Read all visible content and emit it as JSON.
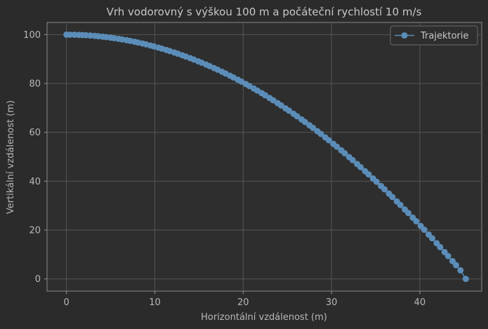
{
  "chart_data": {
    "type": "line",
    "title": "Vrh vodorovný s výškou 100 m a počáteční rychlostí 10 m/s",
    "xlabel": "Horizontální vzdálenost (m)",
    "ylabel": "Vertikální vzdálenost (m)",
    "xlim": [
      -2.2,
      47.0
    ],
    "ylim": [
      -5.0,
      105.0
    ],
    "xticks": [
      0,
      10,
      20,
      30,
      40
    ],
    "yticks": [
      0,
      20,
      40,
      60,
      80,
      100
    ],
    "grid": true,
    "legend_position": "top-right",
    "series": [
      {
        "name": "Trajektorie",
        "color": "#5b8db8",
        "marker": "circle",
        "x": [
          0.0,
          0.4,
          0.9,
          1.4,
          1.8,
          2.2,
          2.7,
          3.2,
          3.6,
          4.1,
          4.5,
          5.0,
          5.4,
          5.9,
          6.3,
          6.8,
          7.2,
          7.7,
          8.1,
          8.6,
          9.0,
          9.5,
          9.9,
          10.4,
          10.8,
          11.3,
          11.7,
          12.2,
          12.6,
          13.1,
          13.5,
          14.0,
          14.4,
          14.9,
          15.3,
          15.8,
          16.2,
          16.7,
          17.1,
          17.6,
          18.0,
          18.5,
          18.9,
          19.4,
          19.8,
          20.3,
          20.7,
          21.2,
          21.6,
          22.1,
          22.5,
          23.0,
          23.4,
          23.9,
          24.3,
          24.8,
          25.2,
          25.7,
          26.1,
          26.6,
          27.0,
          27.5,
          27.9,
          28.4,
          28.8,
          29.3,
          29.7,
          30.2,
          30.6,
          31.1,
          31.5,
          32.0,
          32.4,
          32.9,
          33.3,
          33.8,
          34.2,
          34.7,
          35.1,
          35.6,
          36.0,
          36.5,
          36.9,
          37.4,
          37.8,
          38.3,
          38.7,
          39.2,
          39.6,
          40.1,
          40.5,
          41.0,
          41.4,
          41.9,
          42.3,
          42.8,
          43.2,
          43.7,
          44.1,
          44.6,
          45.2
        ],
        "y": [
          100.0,
          99.99,
          99.96,
          99.9,
          99.84,
          99.76,
          99.64,
          99.5,
          99.36,
          99.18,
          99.0,
          98.78,
          98.57,
          98.29,
          98.05,
          97.73,
          97.46,
          97.09,
          96.78,
          96.37,
          96.03,
          95.57,
          95.19,
          94.7,
          94.28,
          93.74,
          93.29,
          92.7,
          92.21,
          91.58,
          91.06,
          90.39,
          89.83,
          89.11,
          88.52,
          87.76,
          87.13,
          86.32,
          85.66,
          84.81,
          84.1,
          83.21,
          82.48,
          81.54,
          80.77,
          79.79,
          78.98,
          77.96,
          77.11,
          76.05,
          75.16,
          74.05,
          73.13,
          71.98,
          71.03,
          69.83,
          68.85,
          67.61,
          66.59,
          65.31,
          64.25,
          62.93,
          61.83,
          60.47,
          59.35,
          57.93,
          56.78,
          55.33,
          54.14,
          52.64,
          51.42,
          49.87,
          48.62,
          47.03,
          45.74,
          44.11,
          42.8,
          41.12,
          39.77,
          38.06,
          36.68,
          34.91,
          33.51,
          31.71,
          30.26,
          28.42,
          26.96,
          25.07,
          23.58,
          21.66,
          20.14,
          18.17,
          16.62,
          14.61,
          13.02,
          10.98,
          9.35,
          7.28,
          5.63,
          3.51,
          0.0
        ]
      }
    ]
  }
}
